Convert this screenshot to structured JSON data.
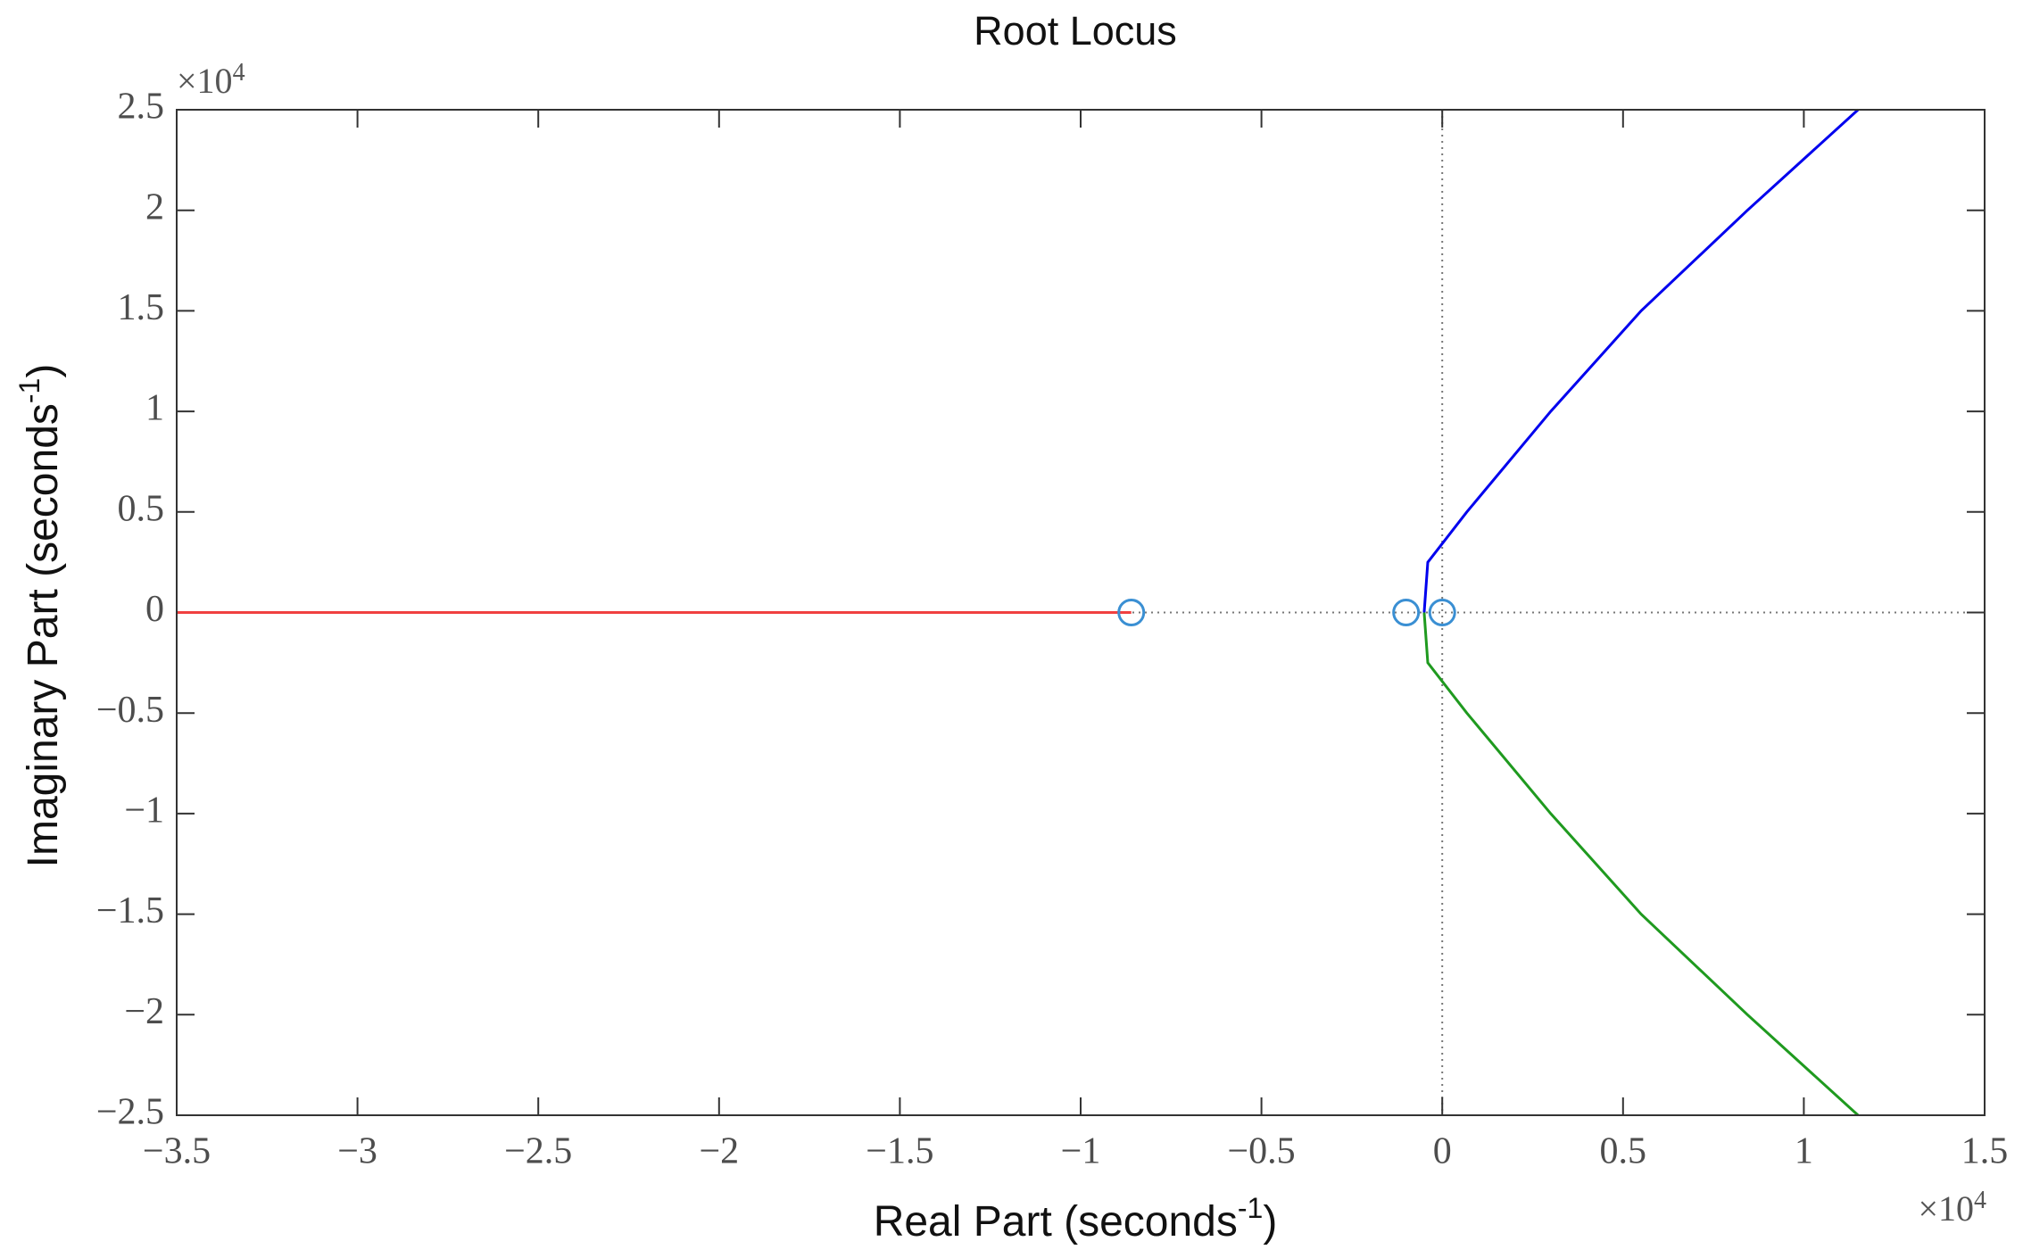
{
  "chart_data": {
    "type": "line",
    "title": "Root Locus",
    "xlabel": {
      "text": "Real Part (seconds",
      "sup": "-1",
      "end": ")"
    },
    "ylabel": {
      "text": "Imaginary Part (seconds",
      "sup": "-1",
      "end": ")"
    },
    "x_multiplier": {
      "base": "×10",
      "exp": "4"
    },
    "y_multiplier": {
      "base": "×10",
      "exp": "4"
    },
    "xlim": [
      -3.5,
      1.5
    ],
    "ylim": [
      -2.5,
      2.5
    ],
    "xticks": [
      {
        "value": -3.5,
        "label": "−3.5"
      },
      {
        "value": -3,
        "label": "−3"
      },
      {
        "value": -2.5,
        "label": "−2.5"
      },
      {
        "value": -2,
        "label": "−2"
      },
      {
        "value": -1.5,
        "label": "−1.5"
      },
      {
        "value": -1,
        "label": "−1"
      },
      {
        "value": -0.5,
        "label": "−0.5"
      },
      0,
      0.5,
      1,
      1.5
    ],
    "yticks": [
      {
        "value": -2.5,
        "label": "−2.5"
      },
      {
        "value": -2,
        "label": "−2"
      },
      {
        "value": -1.5,
        "label": "−1.5"
      },
      {
        "value": -1,
        "label": "−1"
      },
      {
        "value": -0.5,
        "label": "−0.5"
      },
      0,
      0.5,
      1,
      1.5,
      2,
      2.5
    ],
    "series": [
      {
        "color": "#f04040",
        "x": [
          -3.5,
          -0.86
        ],
        "values": [
          0,
          0
        ]
      },
      {
        "color": "#0000ee",
        "x": [
          -0.05,
          -0.04,
          0.068,
          0.3,
          0.55,
          0.844,
          1.15
        ],
        "values": [
          0,
          0.25,
          0.5,
          1,
          1.5,
          2,
          2.5
        ]
      },
      {
        "color": "#1f9a1f",
        "x": [
          -0.05,
          -0.04,
          0.068,
          0.3,
          0.55,
          0.844,
          1.15
        ],
        "values": [
          0,
          -0.25,
          -0.5,
          -1,
          -1.5,
          -2,
          -2.5
        ]
      }
    ],
    "zeros": {
      "color": "#3a8fd3",
      "x": [
        -0.86,
        -0.1,
        0
      ],
      "values": [
        0,
        0,
        0
      ]
    }
  }
}
